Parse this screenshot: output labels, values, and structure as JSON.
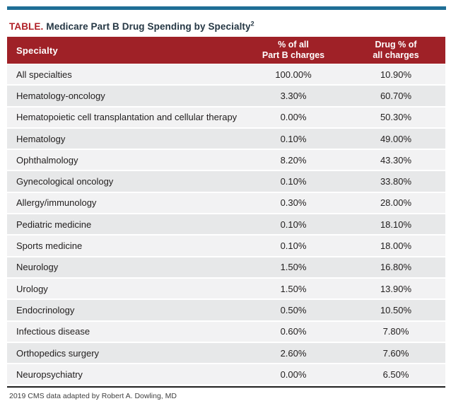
{
  "accent_colors": {
    "top_bar": "#1f6e96",
    "header_bg": "#9f2127",
    "table_label_red": "#b01f26",
    "title_text": "#253744",
    "row_odd_bg": "#f2f2f3",
    "row_even_bg": "#e7e8e9",
    "body_text": "#232020",
    "footer_text": "#404040",
    "rule_color": "#1f1f1f"
  },
  "title": {
    "label": "TABLE.",
    "text": "Medicare Part B Drug Spending by Specialty",
    "superscript": "2"
  },
  "table": {
    "headers": {
      "specialty": "Specialty",
      "part_b": {
        "line1": "% of all",
        "line2": "Part B charges"
      },
      "drug": {
        "line1": "Drug % of",
        "line2": "all charges"
      }
    },
    "rows": [
      {
        "specialty": "All specialties",
        "part_b_pct": "100.00%",
        "drug_pct": "10.90%"
      },
      {
        "specialty": "Hematology-oncology",
        "part_b_pct": "3.30%",
        "drug_pct": "60.70%"
      },
      {
        "specialty": "Hematopoietic cell transplantation and cellular therapy",
        "part_b_pct": "0.00%",
        "drug_pct": "50.30%"
      },
      {
        "specialty": "Hematology",
        "part_b_pct": "0.10%",
        "drug_pct": "49.00%"
      },
      {
        "specialty": "Ophthalmology",
        "part_b_pct": "8.20%",
        "drug_pct": "43.30%"
      },
      {
        "specialty": "Gynecological oncology",
        "part_b_pct": "0.10%",
        "drug_pct": "33.80%"
      },
      {
        "specialty": "Allergy/immunology",
        "part_b_pct": "0.30%",
        "drug_pct": "28.00%"
      },
      {
        "specialty": "Pediatric medicine",
        "part_b_pct": "0.10%",
        "drug_pct": "18.10%"
      },
      {
        "specialty": "Sports medicine",
        "part_b_pct": "0.10%",
        "drug_pct": "18.00%"
      },
      {
        "specialty": "Neurology",
        "part_b_pct": "1.50%",
        "drug_pct": "16.80%"
      },
      {
        "specialty": "Urology",
        "part_b_pct": "1.50%",
        "drug_pct": "13.90%"
      },
      {
        "specialty": "Endocrinology",
        "part_b_pct": "0.50%",
        "drug_pct": "10.50%"
      },
      {
        "specialty": "Infectious disease",
        "part_b_pct": "0.60%",
        "drug_pct": "7.80%"
      },
      {
        "specialty": "Orthopedics surgery",
        "part_b_pct": "2.60%",
        "drug_pct": "7.60%"
      },
      {
        "specialty": "Neuropsychiatry",
        "part_b_pct": "0.00%",
        "drug_pct": "6.50%"
      }
    ]
  },
  "footer": {
    "text": "2019 CMS data adapted by Robert A. Dowling, MD"
  },
  "chart_data": {
    "type": "table",
    "title": "TABLE. Medicare Part B Drug Spending by Specialty",
    "columns": [
      "Specialty",
      "% of all Part B charges",
      "Drug % of all charges"
    ],
    "rows": [
      [
        "All specialties",
        "100.00%",
        "10.90%"
      ],
      [
        "Hematology-oncology",
        "3.30%",
        "60.70%"
      ],
      [
        "Hematopoietic cell transplantation and cellular therapy",
        "0.00%",
        "50.30%"
      ],
      [
        "Hematology",
        "0.10%",
        "49.00%"
      ],
      [
        "Ophthalmology",
        "8.20%",
        "43.30%"
      ],
      [
        "Gynecological oncology",
        "0.10%",
        "33.80%"
      ],
      [
        "Allergy/immunology",
        "0.30%",
        "28.00%"
      ],
      [
        "Pediatric medicine",
        "0.10%",
        "18.10%"
      ],
      [
        "Sports medicine",
        "0.10%",
        "18.00%"
      ],
      [
        "Neurology",
        "1.50%",
        "16.80%"
      ],
      [
        "Urology",
        "1.50%",
        "13.90%"
      ],
      [
        "Endocrinology",
        "0.50%",
        "10.50%"
      ],
      [
        "Infectious disease",
        "0.60%",
        "7.80%"
      ],
      [
        "Orthopedics surgery",
        "2.60%",
        "7.60%"
      ],
      [
        "Neuropsychiatry",
        "0.00%",
        "6.50%"
      ]
    ],
    "footnote": "2019 CMS data adapted by Robert A. Dowling, MD"
  }
}
